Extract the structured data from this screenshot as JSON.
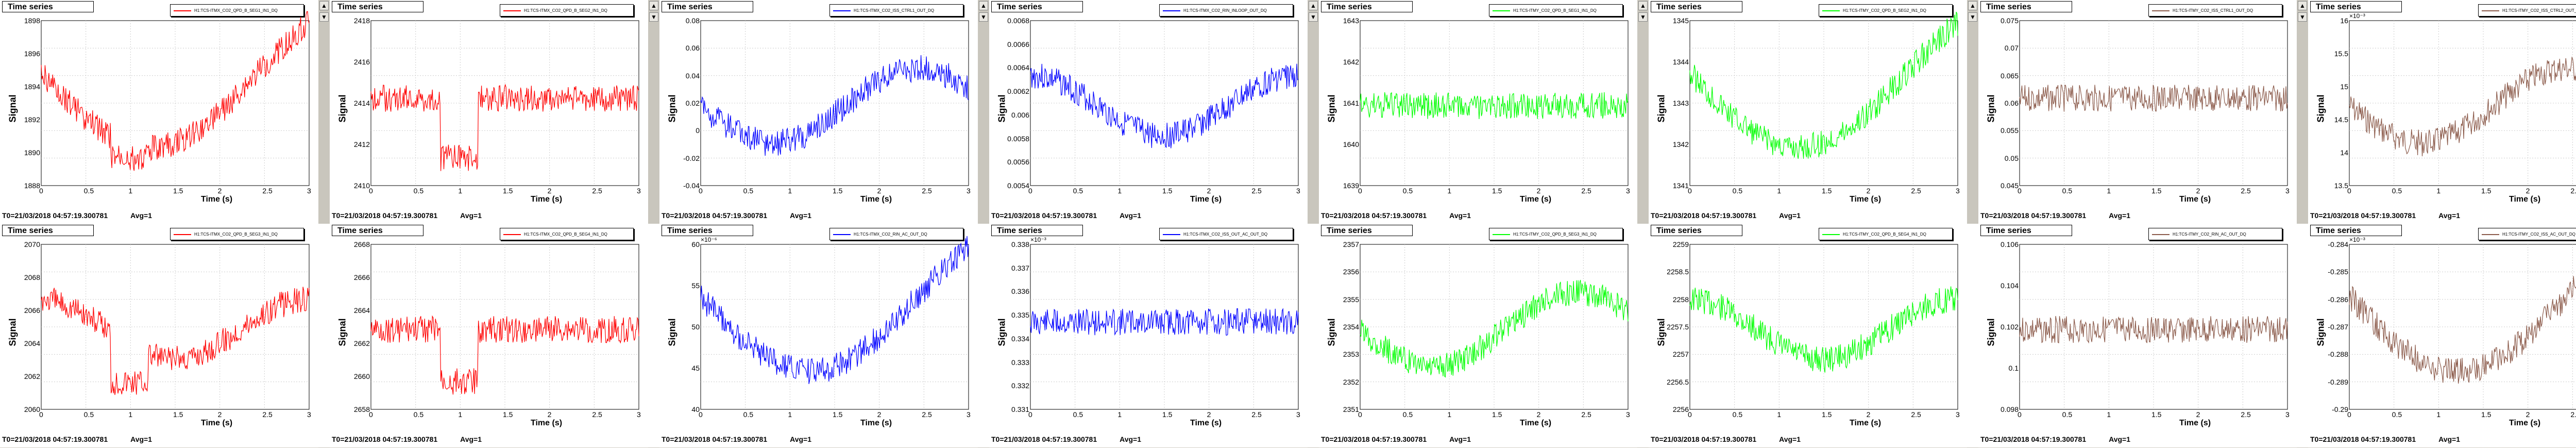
{
  "panels": [
    {
      "title": "Time series",
      "legend": "H1:TCS-ITMX_CO2_QPD_B_SEG1_IN1_DQ",
      "color": "#ff0000",
      "yticks": [
        "1898",
        "1896",
        "1894",
        "1892",
        "1890",
        "1888"
      ],
      "xticks": [
        "0",
        "0.5",
        "1",
        "1.5",
        "2",
        "2.5",
        "3"
      ],
      "multiplier": "",
      "x_label": "Time (s)",
      "y_label": "Signal",
      "footer_time": "T0=21/03/2018 04:57:19.300781",
      "footer_avg": "Avg=1"
    },
    {
      "title": "Time series",
      "legend": "H1:TCS-ITMX_CO2_QPD_B_SEG2_IN1_DQ",
      "color": "#ff0000",
      "yticks": [
        "2418",
        "2416",
        "2414",
        "2412",
        "2410"
      ],
      "xticks": [
        "0",
        "0.5",
        "1",
        "1.5",
        "2",
        "2.5",
        "3"
      ],
      "multiplier": "",
      "x_label": "Time (s)",
      "y_label": "Signal",
      "footer_time": "T0=21/03/2018 04:57:19.300781",
      "footer_avg": "Avg=1"
    },
    {
      "title": "Time series",
      "legend": "H1:TCS-ITMX_CO2_ISS_CTRL1_OUT_DQ",
      "color": "#0000ff",
      "yticks": [
        "0.08",
        "0.06",
        "0.04",
        "0.02",
        "0",
        "-0.02",
        "-0.04"
      ],
      "xticks": [
        "0",
        "0.5",
        "1",
        "1.5",
        "2",
        "2.5",
        "3"
      ],
      "multiplier": "",
      "x_label": "Time (s)",
      "y_label": "Signal",
      "footer_time": "T0=21/03/2018 04:57:19.300781",
      "footer_avg": "Avg=1"
    },
    {
      "title": "Time series",
      "legend": "H1:TCS-ITMX_CO2_RIN_INLOOP_OUT_DQ",
      "color": "#0000ff",
      "yticks": [
        "0.0068",
        "0.0066",
        "0.0064",
        "0.0062",
        "0.006",
        "0.0058",
        "0.0056",
        "0.0054"
      ],
      "xticks": [
        "0",
        "0.5",
        "1",
        "1.5",
        "2",
        "2.5",
        "3"
      ],
      "multiplier": "",
      "x_label": "Time (s)",
      "y_label": "Signal",
      "footer_time": "T0=21/03/2018 04:57:19.300781",
      "footer_avg": "Avg=1"
    },
    {
      "title": "Time series",
      "legend": "H1:TCS-ITMY_CO2_QPD_B_SEG1_IN1_DQ",
      "color": "#00ff00",
      "yticks": [
        "1643",
        "1642",
        "1641",
        "1640",
        "1639"
      ],
      "xticks": [
        "0",
        "0.5",
        "1",
        "1.5",
        "2",
        "2.5",
        "3"
      ],
      "multiplier": "",
      "x_label": "Time (s)",
      "y_label": "Signal",
      "footer_time": "T0=21/03/2018 04:57:19.300781",
      "footer_avg": "Avg=1"
    },
    {
      "title": "Time series",
      "legend": "H1:TCS-ITMY_CO2_QPD_B_SEG2_IN1_DQ",
      "color": "#00ff00",
      "yticks": [
        "1345",
        "1344",
        "1343",
        "1342",
        "1341"
      ],
      "xticks": [
        "0",
        "0.5",
        "1",
        "1.5",
        "2",
        "2.5",
        "3"
      ],
      "multiplier": "",
      "x_label": "Time (s)",
      "y_label": "Signal",
      "footer_time": "T0=21/03/2018 04:57:19.300781",
      "footer_avg": "Avg=1"
    },
    {
      "title": "Time series",
      "legend": "H1:TCS-ITMY_CO2_ISS_CTRL1_OUT_DQ",
      "color": "#8b5a4a",
      "yticks": [
        "0.075",
        "0.07",
        "0.065",
        "0.06",
        "0.055",
        "0.05",
        "0.045"
      ],
      "xticks": [
        "0",
        "0.5",
        "1",
        "1.5",
        "2",
        "2.5",
        "3"
      ],
      "multiplier": "",
      "x_label": "Time (s)",
      "y_label": "Signal",
      "footer_time": "T0=21/03/2018 04:57:19.300781",
      "footer_avg": "Avg=1"
    },
    {
      "title": "Time series",
      "legend": "H1:TCS-ITMY_CO2_ISS_CTRL2_OUT_DQ",
      "color": "#8b5a4a",
      "yticks": [
        "16",
        "15.5",
        "15",
        "14.5",
        "14",
        "13.5"
      ],
      "xticks": [
        "0",
        "0.5",
        "1",
        "1.5",
        "2",
        "2.5",
        "3"
      ],
      "multiplier": "×10⁻³",
      "x_label": "Time (s)",
      "y_label": "Signal",
      "footer_time": "T0=21/03/2018 04:57:19.300781",
      "footer_avg": "Avg=1"
    },
    {
      "title": "Time series",
      "legend": "H1:TCS-ITMX_CO2_QPD_B_SEG3_IN1_DQ",
      "color": "#ff0000",
      "yticks": [
        "2070",
        "2068",
        "2066",
        "2064",
        "2062",
        "2060"
      ],
      "xticks": [
        "0",
        "0.5",
        "1",
        "1.5",
        "2",
        "2.5",
        "3"
      ],
      "multiplier": "",
      "x_label": "Time (s)",
      "y_label": "Signal",
      "footer_time": "T0=21/03/2018 04:57:19.300781",
      "footer_avg": "Avg=1"
    },
    {
      "title": "Time series",
      "legend": "H1:TCS-ITMX_CO2_QPD_B_SEG4_IN1_DQ",
      "color": "#ff0000",
      "yticks": [
        "2668",
        "2666",
        "2664",
        "2662",
        "2660",
        "2658"
      ],
      "xticks": [
        "0",
        "0.5",
        "1",
        "1.5",
        "2",
        "2.5",
        "3"
      ],
      "multiplier": "",
      "x_label": "Time (s)",
      "y_label": "Signal",
      "footer_time": "T0=21/03/2018 04:57:19.300781",
      "footer_avg": "Avg=1"
    },
    {
      "title": "Time series",
      "legend": "H1:TCS-ITMX_CO2_RIN_AC_OUT_DQ",
      "color": "#0000ff",
      "yticks": [
        "60",
        "55",
        "50",
        "45",
        "40"
      ],
      "xticks": [
        "0",
        "0.5",
        "1",
        "1.5",
        "2",
        "2.5",
        "3"
      ],
      "multiplier": "×10⁻⁶",
      "x_label": "Time (s)",
      "y_label": "Signal",
      "footer_time": "T0=21/03/2018 04:57:19.300781",
      "footer_avg": "Avg=1"
    },
    {
      "title": "Time series",
      "legend": "H1:TCS-ITMX_CO2_ISS_OUT_AC_OUT_DQ",
      "color": "#0000ff",
      "yticks": [
        "0.338",
        "0.337",
        "0.336",
        "0.335",
        "0.334",
        "0.333",
        "0.332",
        "0.331"
      ],
      "xticks": [
        "0",
        "0.5",
        "1",
        "1.5",
        "2",
        "2.5",
        "3"
      ],
      "multiplier": "×10⁻³",
      "x_label": "Time (s)",
      "y_label": "Signal",
      "footer_time": "T0=21/03/2018 04:57:19.300781",
      "footer_avg": "Avg=1"
    },
    {
      "title": "Time series",
      "legend": "H1:TCS-ITMY_CO2_QPD_B_SEG3_IN1_DQ",
      "color": "#00ff00",
      "yticks": [
        "2357",
        "2356",
        "2355",
        "2354",
        "2353",
        "2352",
        "2351"
      ],
      "xticks": [
        "0",
        "0.5",
        "1",
        "1.5",
        "2",
        "2.5",
        "3"
      ],
      "multiplier": "",
      "x_label": "Time (s)",
      "y_label": "Signal",
      "footer_time": "T0=21/03/2018 04:57:19.300781",
      "footer_avg": "Avg=1"
    },
    {
      "title": "Time series",
      "legend": "H1:TCS-ITMY_CO2_QPD_B_SEG4_IN1_DQ",
      "color": "#00ff00",
      "yticks": [
        "2259",
        "2258.5",
        "2258",
        "2257.5",
        "2257",
        "2256.5",
        "2256"
      ],
      "xticks": [
        "0",
        "0.5",
        "1",
        "1.5",
        "2",
        "2.5",
        "3"
      ],
      "multiplier": "",
      "x_label": "Time (s)",
      "y_label": "Signal",
      "footer_time": "T0=21/03/2018 04:57:19.300781",
      "footer_avg": "Avg=1"
    },
    {
      "title": "Time series",
      "legend": "H1:TCS-ITMY_CO2_RIN_AC_OUT_DQ",
      "color": "#8b5a4a",
      "yticks": [
        "0.106",
        "0.104",
        "0.102",
        "0.1",
        "0.098"
      ],
      "xticks": [
        "0",
        "0.5",
        "1",
        "1.5",
        "2",
        "2.5",
        "3"
      ],
      "multiplier": "",
      "x_label": "Time (s)",
      "y_label": "Signal",
      "footer_time": "T0=21/03/2018 04:57:19.300781",
      "footer_avg": "Avg=1"
    },
    {
      "title": "Time series",
      "legend": "H1:TCS-ITMY_CO2_ISS_AC_OUT_DQ",
      "color": "#8b5a4a",
      "yticks": [
        "-0.284",
        "-0.285",
        "-0.286",
        "-0.287",
        "-0.288",
        "-0.289",
        "-0.29"
      ],
      "xticks": [
        "0",
        "0.5",
        "1",
        "1.5",
        "2",
        "2.5",
        "3"
      ],
      "multiplier": "×10⁻³",
      "x_label": "Time (s)",
      "y_label": "Signal",
      "footer_time": "T0=21/03/2018 04:57:19.300781",
      "footer_avg": "Avg=1"
    }
  ],
  "arrows": {
    "up": "▲",
    "down": "▼"
  }
}
